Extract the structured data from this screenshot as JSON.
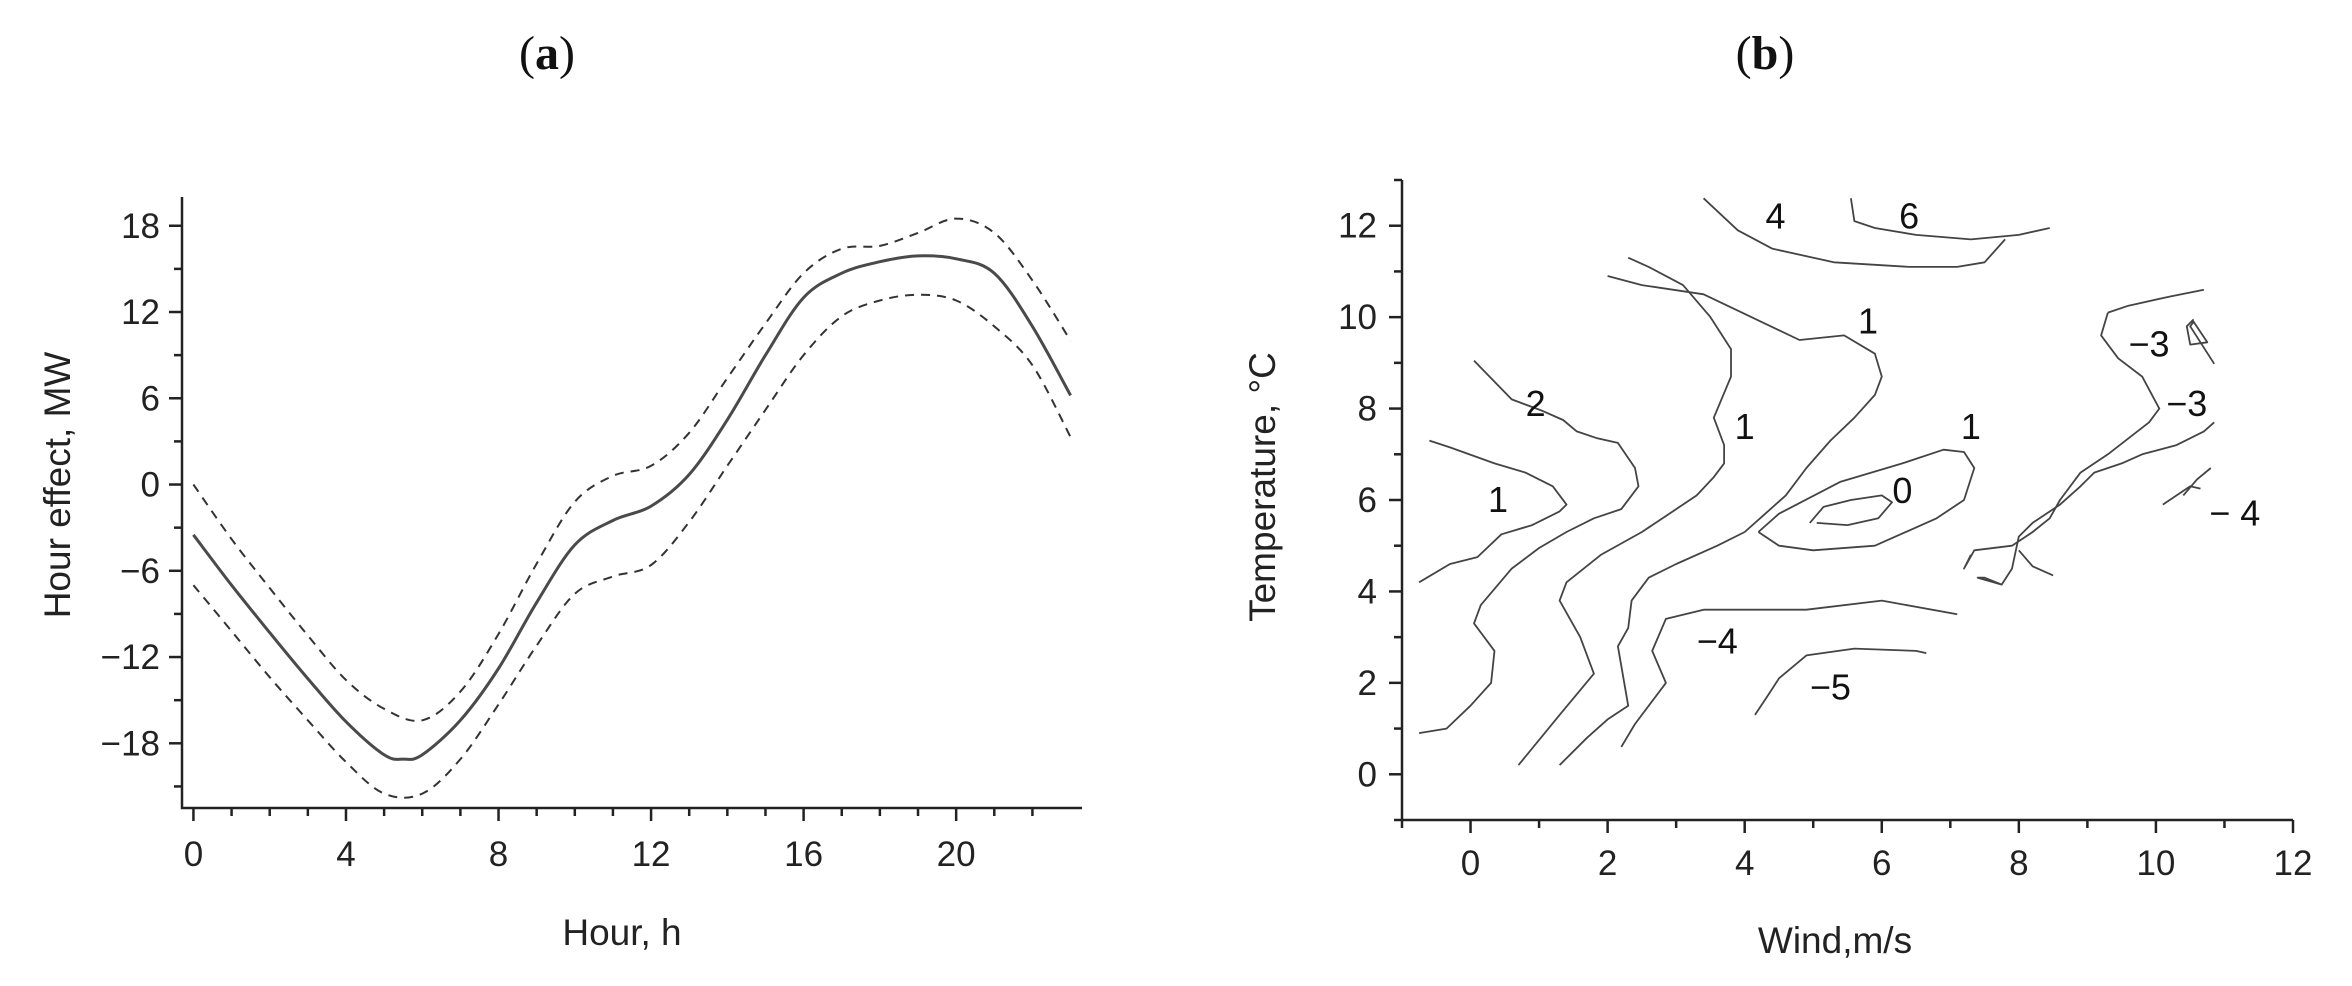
{
  "panels": {
    "a": {
      "label_open": "(",
      "label_letter": "a",
      "label_close": ")"
    },
    "b": {
      "label_open": "(",
      "label_letter": "b",
      "label_close": ")"
    }
  },
  "chart_data": [
    {
      "type": "line",
      "panel": "a",
      "title": "",
      "xlabel": "Hour, h",
      "ylabel": "Hour effect, MW",
      "xlim": [
        -0.3,
        23.3
      ],
      "ylim": [
        -22.5,
        20
      ],
      "xticks": [
        0,
        4,
        8,
        12,
        16,
        20
      ],
      "xtick_labels": [
        "0",
        "4",
        "8",
        "12",
        "16",
        "20"
      ],
      "yticks": [
        -18,
        -12,
        -6,
        0,
        6,
        12,
        18
      ],
      "ytick_labels": [
        "−18",
        "−12",
        "−6",
        "0",
        "6",
        "12",
        "18"
      ],
      "grid": false,
      "series": [
        {
          "style": "solid",
          "color": "#4a4a4a",
          "x": [
            0,
            1,
            2,
            3,
            4,
            5,
            5.5,
            6,
            7,
            8,
            9,
            10,
            11,
            12,
            13,
            14,
            15,
            16,
            17,
            18,
            19,
            20,
            21,
            22,
            23
          ],
          "y": [
            -3.5,
            -7,
            -10.3,
            -13.5,
            -16.5,
            -18.8,
            -19.1,
            -18.8,
            -16.4,
            -12.8,
            -8.2,
            -4.2,
            -2.5,
            -1.5,
            0.7,
            4.5,
            9,
            13,
            14.7,
            15.5,
            15.9,
            15.7,
            14.7,
            11,
            6.2
          ]
        },
        {
          "style": "dashed",
          "color": "#333333",
          "x": [
            0,
            1,
            2,
            3,
            4,
            5,
            6,
            7,
            8,
            9,
            10,
            11,
            12,
            13,
            14,
            15,
            16,
            17,
            18,
            19,
            20,
            21,
            22,
            23
          ],
          "y": [
            0,
            -3.8,
            -7.2,
            -10.5,
            -13.6,
            -15.6,
            -16.4,
            -14.4,
            -10.4,
            -5.5,
            -1.2,
            0.6,
            1.3,
            3.6,
            7.4,
            11.2,
            14.7,
            16.4,
            16.6,
            17.5,
            18.5,
            17.5,
            14.2,
            10
          ]
        },
        {
          "style": "dashed",
          "color": "#333333",
          "x": [
            0,
            1,
            2,
            3,
            4,
            5,
            6,
            7,
            8,
            9,
            10,
            11,
            12,
            13,
            14,
            15,
            16,
            17,
            18,
            19,
            20,
            21,
            22,
            23
          ],
          "y": [
            -7,
            -10.2,
            -13.4,
            -16.4,
            -19.3,
            -21.5,
            -21.5,
            -19.1,
            -15.3,
            -11.2,
            -7.6,
            -6.4,
            -5.6,
            -2.6,
            1.3,
            5.2,
            9,
            11.7,
            12.8,
            13.2,
            12.8,
            11,
            8.3,
            3.3
          ]
        }
      ]
    },
    {
      "type": "contour",
      "panel": "b",
      "title": "",
      "xlabel": "Wind,m/s",
      "ylabel": "Temperature, °C",
      "xlim": [
        -1,
        12
      ],
      "ylim": [
        -1,
        13
      ],
      "xticks": [
        0,
        2,
        4,
        6,
        8,
        10,
        12
      ],
      "xtick_labels": [
        "0",
        "2",
        "4",
        "6",
        "8",
        "10",
        "12"
      ],
      "yticks": [
        0,
        2,
        4,
        6,
        8,
        10,
        12
      ],
      "ytick_labels": [
        "0",
        "2",
        "4",
        "6",
        "8",
        "10",
        "12"
      ],
      "grid": false,
      "line_color": "#444444",
      "contour_labels": [
        {
          "text": "4",
          "x": 4.45,
          "y": 12.2
        },
        {
          "text": "6",
          "x": 6.4,
          "y": 12.2
        },
        {
          "text": "1",
          "x": 5.8,
          "y": 9.9
        },
        {
          "text": "2",
          "x": 0.95,
          "y": 8.1
        },
        {
          "text": "1",
          "x": 4.0,
          "y": 7.6
        },
        {
          "text": "1",
          "x": 7.3,
          "y": 7.6
        },
        {
          "text": "1",
          "x": 0.4,
          "y": 6.0
        },
        {
          "text": "0",
          "x": 6.3,
          "y": 6.2
        },
        {
          "text": "−3",
          "x": 9.9,
          "y": 9.4
        },
        {
          "text": "−3",
          "x": 10.45,
          "y": 8.1
        },
        {
          "text": "− 4",
          "x": 11.15,
          "y": 5.7
        },
        {
          "text": "−4",
          "x": 3.6,
          "y": 2.9
        },
        {
          "text": "−5",
          "x": 5.25,
          "y": 1.9
        }
      ],
      "contour_lines": [
        {
          "x": [
            3.4,
            3.9,
            4.4,
            5.3,
            6.4,
            7.1,
            7.5,
            7.8
          ],
          "y": [
            12.6,
            11.9,
            11.5,
            11.2,
            11.1,
            11.1,
            11.2,
            11.7
          ]
        },
        {
          "x": [
            5.55,
            5.6,
            5.9,
            6.5,
            7.3,
            8.0,
            8.45
          ],
          "y": [
            12.6,
            12.1,
            11.95,
            11.8,
            11.7,
            11.8,
            11.95
          ]
        },
        {
          "x": [
            2.3,
            2.6,
            3.1,
            3.5,
            3.8,
            3.8,
            3.55,
            3.7,
            3.7,
            3.55,
            3.3,
            2.9,
            2.5,
            1.9,
            1.4,
            1.3,
            1.6,
            1.8,
            1.3,
            0.7
          ],
          "y": [
            11.3,
            11.1,
            10.7,
            10.0,
            9.3,
            8.7,
            7.8,
            7.2,
            6.8,
            6.5,
            6.1,
            5.7,
            5.3,
            4.8,
            4.2,
            3.8,
            3.0,
            2.2,
            1.3,
            0.2
          ]
        },
        {
          "x": [
            2.0,
            2.5,
            3.4,
            4.8,
            5.45,
            5.9,
            6.0,
            5.9,
            5.6,
            5.25,
            4.9,
            4.6,
            4.3,
            4.0,
            3.6,
            3.0,
            2.6,
            2.35,
            2.3,
            2.15,
            2.3,
            2.0,
            1.7,
            1.3
          ],
          "y": [
            10.9,
            10.7,
            10.5,
            9.5,
            9.6,
            9.2,
            8.7,
            8.3,
            7.8,
            7.3,
            6.7,
            6.1,
            5.7,
            5.3,
            5.0,
            4.6,
            4.3,
            3.8,
            3.2,
            2.8,
            1.5,
            1.2,
            0.8,
            0.2
          ]
        },
        {
          "x": [
            0.05,
            0.6,
            1.05,
            1.35,
            1.55,
            1.85,
            2.15,
            2.4,
            2.45,
            2.2,
            1.8,
            1.4,
            1.0,
            0.6,
            0.15,
            0.05,
            0.35,
            0.3,
            0.0,
            -0.35,
            -0.75
          ],
          "y": [
            9.05,
            8.2,
            7.95,
            7.75,
            7.5,
            7.35,
            7.25,
            6.7,
            6.3,
            5.8,
            5.6,
            5.3,
            4.95,
            4.5,
            3.7,
            3.3,
            2.7,
            2.0,
            1.5,
            1.0,
            0.9
          ]
        },
        {
          "x": [
            -0.6,
            -0.3,
            0.35,
            0.8,
            1.2,
            1.4,
            1.3,
            0.9,
            0.45,
            0.1,
            -0.3,
            -0.75
          ],
          "y": [
            7.3,
            7.15,
            6.8,
            6.6,
            6.3,
            5.9,
            5.75,
            5.45,
            5.25,
            4.75,
            4.6,
            4.2
          ]
        },
        {
          "x": [
            4.2,
            4.5,
            5.4,
            6.3,
            6.9,
            7.2,
            7.35,
            7.2,
            6.8,
            5.9,
            5.0,
            4.5,
            4.2
          ],
          "y": [
            5.3,
            5.7,
            6.4,
            6.8,
            7.1,
            7.05,
            6.7,
            6.0,
            5.6,
            5.0,
            4.9,
            5.0,
            5.3
          ]
        },
        {
          "x": [
            4.95,
            5.15,
            5.55,
            6.0,
            6.15,
            5.95,
            5.5,
            5.05
          ],
          "y": [
            5.5,
            5.85,
            6.0,
            6.1,
            5.95,
            5.6,
            5.45,
            5.5
          ]
        },
        {
          "x": [
            9.3,
            9.6,
            10.2,
            10.7
          ],
          "y": [
            10.1,
            10.25,
            10.45,
            10.6
          ]
        },
        {
          "x": [
            9.3,
            9.2,
            9.45,
            9.8,
            10.05,
            9.9,
            9.6,
            9.3,
            8.9,
            8.6,
            8.45,
            8.2,
            7.9,
            7.35,
            7.2,
            7.3
          ],
          "y": [
            10.1,
            9.6,
            9.1,
            8.7,
            8.0,
            7.7,
            7.35,
            7.0,
            6.6,
            6.0,
            5.6,
            5.3,
            5.0,
            4.9,
            4.5,
            4.8
          ]
        },
        {
          "x": [
            10.55,
            10.45,
            10.5,
            10.75,
            10.55,
            10.5,
            10.85
          ],
          "y": [
            9.95,
            9.8,
            9.4,
            9.45,
            9.9,
            9.8,
            8.98
          ]
        },
        {
          "x": [
            10.85,
            10.7,
            10.3,
            9.8,
            9.5,
            9.1,
            8.9,
            8.6,
            8.2,
            8.0,
            7.9,
            7.75,
            7.4,
            7.5,
            7.75
          ],
          "y": [
            7.7,
            7.5,
            7.2,
            7.0,
            6.8,
            6.6,
            6.3,
            5.9,
            5.5,
            5.2,
            4.5,
            4.15,
            4.3,
            4.3,
            4.15
          ]
        },
        {
          "x": [
            8.0,
            8.2,
            8.5
          ],
          "y": [
            4.9,
            4.55,
            4.35
          ]
        },
        {
          "x": [
            10.1,
            10.5,
            10.65
          ],
          "y": [
            5.9,
            6.3,
            6.25
          ]
        },
        {
          "x": [
            10.8,
            10.6,
            10.4
          ],
          "y": [
            6.7,
            6.45,
            6.1
          ]
        },
        {
          "x": [
            2.2,
            2.4,
            2.85,
            2.65,
            2.85,
            3.4,
            4.0,
            4.9,
            6.0,
            7.1
          ],
          "y": [
            0.6,
            1.1,
            2.0,
            2.7,
            3.4,
            3.6,
            3.6,
            3.6,
            3.8,
            3.5
          ]
        },
        {
          "x": [
            4.15,
            4.35,
            4.5,
            4.9,
            5.6,
            6.5,
            6.65
          ],
          "y": [
            1.3,
            1.75,
            2.1,
            2.6,
            2.75,
            2.7,
            2.65
          ]
        }
      ]
    }
  ]
}
